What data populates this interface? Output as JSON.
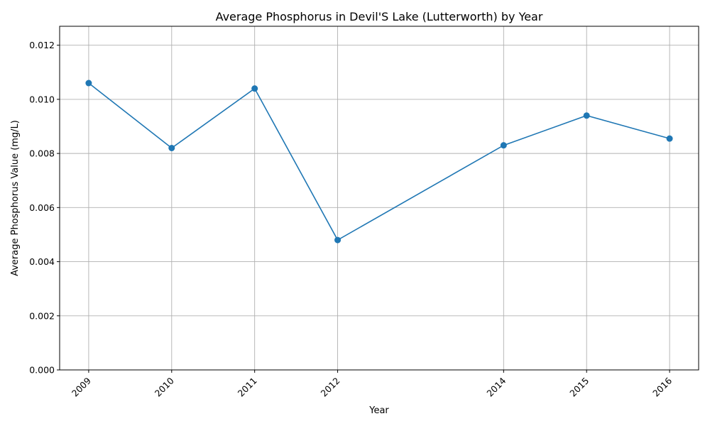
{
  "chart_data": {
    "type": "line",
    "title": "Average Phosphorus in Devil'S Lake (Lutterworth) by Year",
    "xlabel": "Year",
    "ylabel": "Average Phosphorus Value (mg/L)",
    "x": [
      2009,
      2010,
      2011,
      2012,
      2014,
      2015,
      2016
    ],
    "x_tick_labels": [
      "2009",
      "2010",
      "2011",
      "2012",
      "2014",
      "2015",
      "2016"
    ],
    "series": [
      {
        "values": [
          0.0106,
          0.0082,
          0.0104,
          0.0048,
          0.0083,
          0.0094,
          0.00855
        ],
        "color": "#1f77b4",
        "marker": "circle"
      }
    ],
    "xlim": [
      2008.65,
      2016.35
    ],
    "ylim": [
      0,
      0.0127
    ],
    "y_ticks": [
      0.0,
      0.002,
      0.004,
      0.006,
      0.008,
      0.01,
      0.012
    ],
    "y_tick_labels": [
      "0.000",
      "0.002",
      "0.004",
      "0.006",
      "0.008",
      "0.010",
      "0.012"
    ],
    "grid": true,
    "legend": "none"
  }
}
